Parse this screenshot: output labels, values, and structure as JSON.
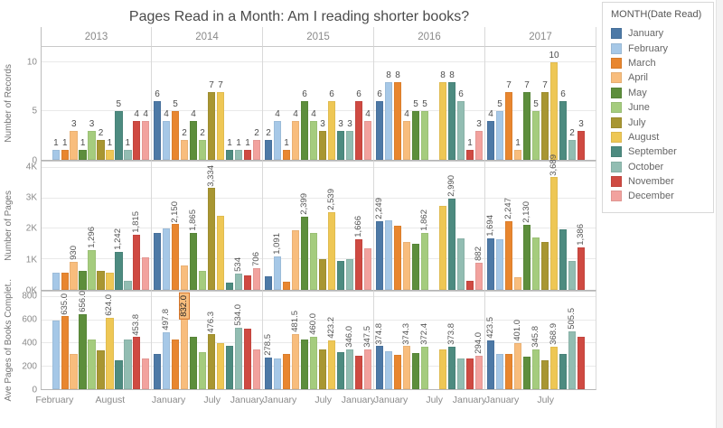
{
  "title": "Pages Read in a Month: Am I reading shorter books?",
  "legend": {
    "title": "MONTH(Date Read)",
    "items": [
      {
        "label": "January",
        "color": "#4d79a6"
      },
      {
        "label": "February",
        "color": "#a6c8e7"
      },
      {
        "label": "March",
        "color": "#e8862f"
      },
      {
        "label": "April",
        "color": "#f8bd7d"
      },
      {
        "label": "May",
        "color": "#5d8e3c"
      },
      {
        "label": "June",
        "color": "#a5cc7e"
      },
      {
        "label": "July",
        "color": "#a89632"
      },
      {
        "label": "August",
        "color": "#eec755"
      },
      {
        "label": "September",
        "color": "#4d8b80"
      },
      {
        "label": "October",
        "color": "#92bdb2"
      },
      {
        "label": "November",
        "color": "#cf4a42"
      },
      {
        "label": "December",
        "color": "#f2a29e"
      }
    ]
  },
  "chart_data": {
    "type": "bar",
    "facet_years": [
      "2013",
      "2014",
      "2015",
      "2016",
      "2017"
    ],
    "months": [
      "January",
      "February",
      "March",
      "April",
      "May",
      "June",
      "July",
      "August",
      "September",
      "October",
      "November",
      "December"
    ],
    "rows": [
      {
        "label": "Number of Records",
        "ymax": 11.6,
        "ticks": [
          {
            "v": 0,
            "t": "0"
          },
          {
            "v": 5,
            "t": "5"
          },
          {
            "v": 10,
            "t": "10"
          }
        ],
        "label_all": true,
        "values": {
          "2013": [
            null,
            1,
            1,
            3,
            1,
            3,
            2,
            1,
            5,
            1,
            4,
            4
          ],
          "2014": [
            6,
            4,
            5,
            2,
            4,
            2,
            7,
            7,
            1,
            1,
            1,
            2
          ],
          "2015": [
            2,
            4,
            1,
            4,
            6,
            4,
            3,
            6,
            3,
            3,
            6,
            4
          ],
          "2016": [
            6,
            8,
            8,
            4,
            5,
            5,
            null,
            8,
            8,
            6,
            1,
            3
          ],
          "2017": [
            4,
            5,
            7,
            1,
            7,
            5,
            7,
            10,
            6,
            2,
            3,
            null
          ]
        }
      },
      {
        "label": "Number of Pages",
        "ymax": 4200,
        "ticks": [
          {
            "v": 0,
            "t": "0K"
          },
          {
            "v": 1000,
            "t": "1K"
          },
          {
            "v": 2000,
            "t": "2K"
          },
          {
            "v": 3000,
            "t": "3K"
          },
          {
            "v": 4000,
            "t": "4K"
          }
        ],
        "label_all": false,
        "values": {
          "2013": [
            null,
            550,
            560,
            930,
            620,
            1296,
            630,
            560,
            1242,
            300,
            1815,
            1080
          ],
          "2014": [
            1850,
            2000,
            2150,
            800,
            1865,
            620,
            3334,
            2430,
            250,
            534,
            460,
            706
          ],
          "2015": [
            450,
            1091,
            280,
            1950,
            2399,
            1870,
            1000,
            2539,
            950,
            1000,
            1666,
            1350
          ],
          "2016": [
            2249,
            2280,
            2100,
            1560,
            1500,
            1862,
            null,
            2760,
            2990,
            1700,
            300,
            882
          ],
          "2017": [
            1694,
            1660,
            2247,
            400,
            2130,
            1720,
            1560,
            3689,
            1980,
            950,
            1386,
            null
          ]
        },
        "labels": {
          "2013": [
            null,
            null,
            null,
            "930",
            null,
            "1,296",
            null,
            null,
            "1,242",
            null,
            "1,815",
            null
          ],
          "2014": [
            null,
            null,
            "2,150",
            null,
            "1,865",
            null,
            "3,334",
            null,
            null,
            "534",
            null,
            "706"
          ],
          "2015": [
            null,
            "1,091",
            null,
            null,
            "2,399",
            null,
            null,
            "2,539",
            null,
            null,
            "1,666",
            null
          ],
          "2016": [
            "2,249",
            null,
            null,
            null,
            null,
            "1,862",
            null,
            null,
            "2,990",
            null,
            null,
            "882"
          ],
          "2017": [
            "1,694",
            null,
            "2,247",
            null,
            "2,130",
            null,
            null,
            "3,689",
            null,
            null,
            "1,386",
            null
          ]
        }
      },
      {
        "label": "Ave Pages of Books Complet..",
        "ymax": 850,
        "ticks": [
          {
            "v": 0,
            "t": "0"
          },
          {
            "v": 200,
            "t": "200"
          },
          {
            "v": 400,
            "t": "400"
          },
          {
            "v": 600,
            "t": "600"
          },
          {
            "v": 800,
            "t": "800"
          }
        ],
        "label_all": false,
        "values": {
          "2013": [
            null,
            595,
            635,
            310,
            656,
            430,
            335,
            624,
            250,
            430,
            453.8,
            270
          ],
          "2014": [
            305,
            497.8,
            430,
            832,
            460,
            320,
            476.3,
            400,
            380,
            534,
            525,
            350
          ],
          "2015": [
            278.5,
            270,
            310,
            481.5,
            430,
            460,
            345,
            423.2,
            320,
            346,
            290,
            347.5
          ],
          "2016": [
            374.8,
            330,
            300,
            374.3,
            315,
            372.4,
            null,
            345,
            373.8,
            265,
            270,
            294
          ],
          "2017": [
            423.5,
            310,
            305,
            401,
            280,
            345.8,
            250,
            368.9,
            310,
            505.5,
            460,
            null
          ]
        },
        "labels": {
          "2013": [
            null,
            null,
            "635.0",
            null,
            "656.0",
            null,
            null,
            "624.0",
            null,
            null,
            "453.8",
            null
          ],
          "2014": [
            null,
            "497.8",
            null,
            "832.0",
            null,
            null,
            "476.3",
            null,
            null,
            "534.0",
            null,
            null
          ],
          "2015": [
            "278.5",
            null,
            null,
            "481.5",
            null,
            "460.0",
            null,
            "423.2",
            null,
            "346.0",
            null,
            "347.5"
          ],
          "2016": [
            "374.8",
            null,
            null,
            "374.3",
            null,
            "372.4",
            null,
            null,
            "373.8",
            null,
            null,
            "294.0"
          ],
          "2017": [
            "423.5",
            null,
            null,
            "401.0",
            null,
            "345.8",
            null,
            "368.9",
            null,
            "505.5",
            null,
            null
          ]
        },
        "highlight": {
          "year": "2014",
          "month_index": 3
        }
      }
    ],
    "x_axis": {
      "2013": [
        {
          "label": "February",
          "pos": 0.125
        },
        {
          "label": "August",
          "pos": 0.625
        }
      ],
      "2014": [
        {
          "label": "January",
          "pos": 0.045
        },
        {
          "label": "July",
          "pos": 0.542
        },
        {
          "label": "January",
          "pos": 1.0
        }
      ],
      "2015": [
        {
          "label": "January",
          "pos": 0.045
        },
        {
          "label": "July",
          "pos": 0.542
        },
        {
          "label": "January",
          "pos": 1.0
        }
      ],
      "2016": [
        {
          "label": "January",
          "pos": 0.045
        },
        {
          "label": "July",
          "pos": 0.542
        },
        {
          "label": "January",
          "pos": 1.0
        }
      ],
      "2017": [
        {
          "label": "January",
          "pos": 0.045
        },
        {
          "label": "July",
          "pos": 0.542
        }
      ]
    }
  }
}
